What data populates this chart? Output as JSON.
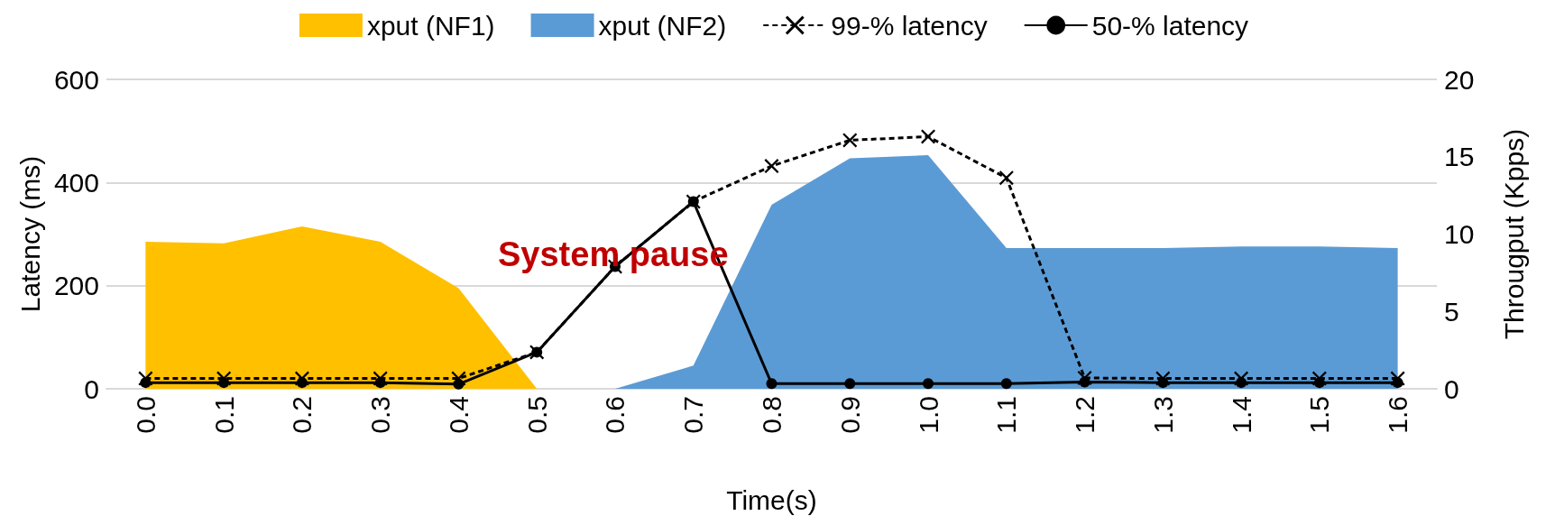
{
  "chart_data": {
    "type": "line",
    "xlabel": "Time(s)",
    "ylabel": "Latency (ms)",
    "y2label": "Througput (Kpps)",
    "categories": [
      "0.0",
      "0.1",
      "0.2",
      "0.3",
      "0.4",
      "0.5",
      "0.6",
      "0.7",
      "0.8",
      "0.9",
      "1.0",
      "1.1",
      "1.2",
      "1.3",
      "1.4",
      "1.5",
      "1.6"
    ],
    "series": [
      {
        "name": "xput (NF1)",
        "type": "area",
        "axis": "y2",
        "color": "#ffc000",
        "values": [
          9.5,
          9.4,
          10.5,
          9.5,
          6.5,
          0,
          null,
          null,
          null,
          null,
          null,
          null,
          null,
          null,
          null,
          null,
          null
        ]
      },
      {
        "name": "xput (NF2)",
        "type": "area",
        "axis": "y2",
        "color": "#5b9bd5",
        "values": [
          null,
          null,
          null,
          null,
          null,
          null,
          0,
          1.5,
          11.9,
          14.9,
          15.1,
          9.1,
          9.1,
          9.1,
          9.2,
          9.2,
          9.1
        ]
      },
      {
        "name": "99-% latency",
        "color": "#000000",
        "marker": "cross",
        "line_style": "dashed",
        "values": [
          20,
          20,
          20,
          20,
          20,
          71,
          237,
          363,
          432,
          482,
          489,
          409,
          21,
          20,
          20,
          20,
          20
        ]
      },
      {
        "name": "50-% latency",
        "color": "#000000",
        "marker": "circle",
        "line_style": "solid",
        "values": [
          12,
          12,
          12,
          12,
          9,
          71,
          237,
          363,
          10,
          10,
          10,
          10,
          13,
          12,
          12,
          12,
          12
        ]
      }
    ],
    "ylim": [
      0,
      600
    ],
    "yticks": [
      0,
      200,
      400,
      600
    ],
    "y2lim": [
      0,
      20
    ],
    "y2ticks": [
      0,
      5,
      10,
      15,
      20
    ],
    "grid": "y",
    "legend": "top",
    "annotations": [
      "System pause"
    ]
  }
}
